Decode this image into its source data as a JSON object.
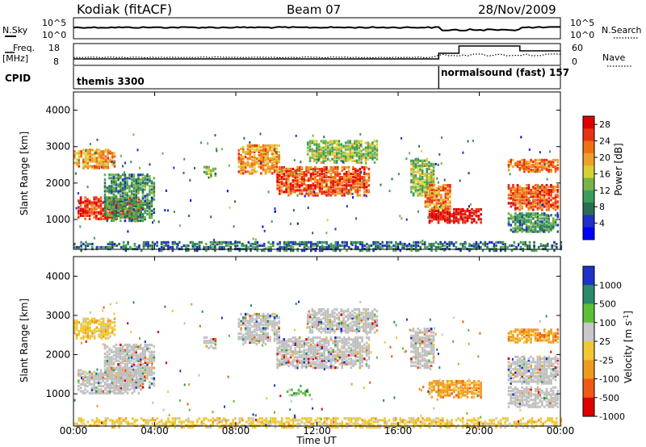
{
  "header": {
    "station": "Kodiak (fitACF)",
    "beam": "Beam 07",
    "date": "28/Nov/2009"
  },
  "labels": {
    "nsky": "N.Sky",
    "nsearch": "N.Search",
    "freq_line1": "Freq.",
    "freq_line2": "[MHz]",
    "nave": "Nave",
    "cpid": "CPID",
    "cpid_mode1": "themis 3300",
    "cpid_mode2": "normalsound (fast) 157",
    "x_axis": "Time UT"
  },
  "axis_ticks": {
    "noise_left": [
      "10^5",
      "10^0"
    ],
    "noise_right": [
      "10^5",
      "10^0"
    ],
    "freq_left": [
      "18",
      "8"
    ],
    "freq_right": [
      "60",
      "0"
    ],
    "range": [
      "4000",
      "3000",
      "2000",
      "1000"
    ],
    "time": [
      "00:00",
      "04:00",
      "08:00",
      "12:00",
      "16:00",
      "20:00",
      "00:00"
    ]
  },
  "chart_data": [
    {
      "type": "heatmap",
      "title": "Power",
      "xlabel": "Time UT",
      "ylabel": "Slant Range [km]",
      "xlim_hours": [
        0,
        24
      ],
      "ylim_km": [
        180,
        4500
      ],
      "colorbar_label": "Power [dB]",
      "colorbar_ticks": [
        "28",
        "24",
        "20",
        "16",
        "12",
        "8",
        "4"
      ],
      "colorbar_range": [
        0,
        30
      ],
      "colors": [
        "#0000ff",
        "#2030c8",
        "#2a6e52",
        "#3c9c5c",
        "#78b44a",
        "#d6d232",
        "#f0a02a",
        "#f07014",
        "#e83214",
        "#e00000"
      ],
      "blobs": [
        {
          "t0": 0.0,
          "t1": 2.0,
          "r0": 2450,
          "r1": 2950,
          "v": 20
        },
        {
          "t0": 0.2,
          "t1": 3.3,
          "r0": 1050,
          "r1": 1650,
          "v": 26
        },
        {
          "t0": 1.5,
          "t1": 4.0,
          "r0": 1000,
          "r1": 2300,
          "v": 10
        },
        {
          "t0": 6.4,
          "t1": 7.0,
          "r0": 2200,
          "r1": 2500,
          "v": 12
        },
        {
          "t0": 8.1,
          "t1": 10.1,
          "r0": 2300,
          "r1": 3100,
          "v": 20
        },
        {
          "t0": 10.0,
          "t1": 14.6,
          "r0": 1700,
          "r1": 2500,
          "v": 24
        },
        {
          "t0": 11.5,
          "t1": 15.0,
          "r0": 2600,
          "r1": 3200,
          "v": 14
        },
        {
          "t0": 16.6,
          "t1": 17.8,
          "r0": 1700,
          "r1": 2700,
          "v": 14
        },
        {
          "t0": 17.5,
          "t1": 20.1,
          "r0": 950,
          "r1": 1350,
          "v": 29
        },
        {
          "t0": 17.3,
          "t1": 18.6,
          "r0": 1300,
          "r1": 2000,
          "v": 22
        },
        {
          "t0": 21.4,
          "t1": 23.9,
          "r0": 2350,
          "r1": 2700,
          "v": 22
        },
        {
          "t0": 21.4,
          "t1": 23.9,
          "r0": 1300,
          "r1": 2000,
          "v": 24
        },
        {
          "t0": 21.4,
          "t1": 23.9,
          "r0": 700,
          "r1": 1200,
          "v": 10
        },
        {
          "t0": 0.0,
          "t1": 24.0,
          "r0": 180,
          "r1": 420,
          "v": 8
        }
      ]
    },
    {
      "type": "heatmap",
      "title": "Velocity",
      "xlabel": "Time UT",
      "ylabel": "Slant Range [km]",
      "xlim_hours": [
        0,
        24
      ],
      "ylim_km": [
        180,
        4500
      ],
      "colorbar_label": "Velocity [m s^-1]",
      "colorbar_ticks": [
        "1000",
        "500",
        "100",
        "25",
        "-25",
        "-100",
        "-500",
        "-1000"
      ],
      "colors": [
        "#1e32c8",
        "#2a8a6a",
        "#5cc038",
        "#c8c8c8",
        "#f0c832",
        "#f09a1e",
        "#f05a14",
        "#e00000"
      ],
      "ground_scatter": "#c0c0c0",
      "blobs": [
        {
          "t0": 0.0,
          "t1": 2.0,
          "r0": 2450,
          "r1": 2950,
          "c": 4
        },
        {
          "t0": 0.2,
          "t1": 3.3,
          "r0": 1050,
          "r1": 1650,
          "c": 3
        },
        {
          "t0": 1.5,
          "t1": 4.0,
          "r0": 1200,
          "r1": 2300,
          "c": 3
        },
        {
          "t0": 6.4,
          "t1": 7.0,
          "r0": 2200,
          "r1": 2500,
          "c": 3
        },
        {
          "t0": 8.1,
          "t1": 10.1,
          "r0": 2300,
          "r1": 3100,
          "c": 3
        },
        {
          "t0": 10.0,
          "t1": 14.6,
          "r0": 1700,
          "r1": 2500,
          "c": 3
        },
        {
          "t0": 11.5,
          "t1": 15.0,
          "r0": 2600,
          "r1": 3200,
          "c": 3
        },
        {
          "t0": 16.6,
          "t1": 17.8,
          "r0": 1700,
          "r1": 2700,
          "c": 3
        },
        {
          "t0": 17.5,
          "t1": 20.1,
          "r0": 950,
          "r1": 1400,
          "c": 5
        },
        {
          "t0": 10.5,
          "t1": 11.6,
          "r0": 1000,
          "r1": 1150,
          "c": 2
        },
        {
          "t0": 21.4,
          "t1": 23.9,
          "r0": 2350,
          "r1": 2700,
          "c": 5
        },
        {
          "t0": 21.4,
          "t1": 23.9,
          "r0": 1300,
          "r1": 2000,
          "c": 3
        },
        {
          "t0": 21.4,
          "t1": 23.9,
          "r0": 700,
          "r1": 1200,
          "c": 3
        },
        {
          "t0": 0.0,
          "t1": 24.0,
          "r0": 180,
          "r1": 420,
          "c": 4
        }
      ]
    }
  ]
}
